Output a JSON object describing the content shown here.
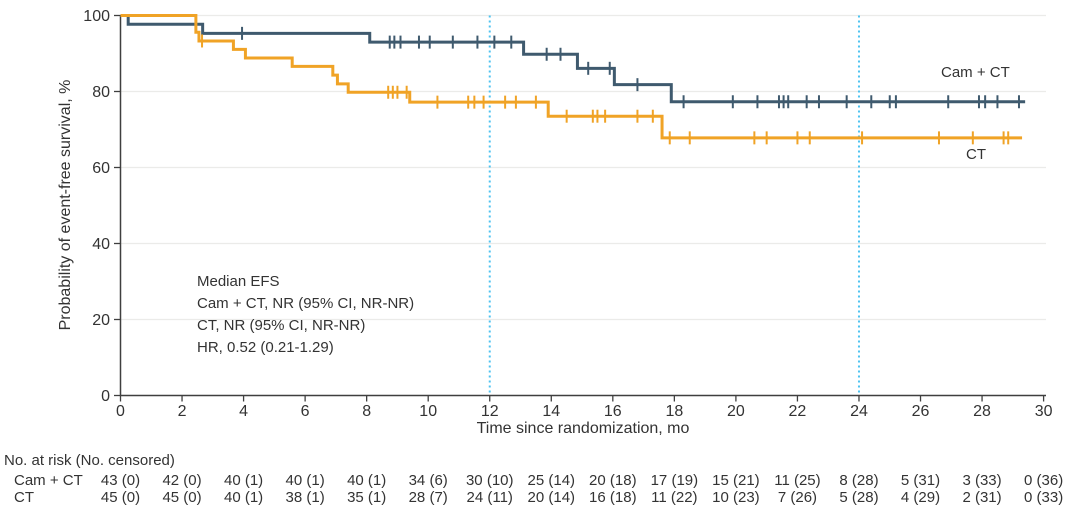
{
  "annotation": [
    "Median EFS",
    "Cam + CT, NR (95% CI, NR-NR)",
    "CT, NR (95% CI, NR-NR)",
    "HR, 0.52 (0.21-1.29)"
  ],
  "chart_data": {
    "type": "line",
    "subtype": "kaplan-meier-step",
    "title": "",
    "xlabel": "Time since randomization, mo",
    "ylabel": "Probability of event-free survival, %",
    "xlim": [
      0,
      30
    ],
    "ylim": [
      0,
      100
    ],
    "x_ticks": [
      0,
      2,
      4,
      6,
      8,
      10,
      12,
      14,
      16,
      18,
      20,
      22,
      24,
      26,
      28,
      30
    ],
    "y_ticks": [
      0,
      20,
      40,
      60,
      80,
      100
    ],
    "grid": "horizontal",
    "grid_color": "#ebebe9",
    "axis_color": "#3f3f3f",
    "text_color": "#333333",
    "reference_lines_x": [
      12,
      24
    ],
    "reference_line_color": "#4ec3f0",
    "legend_position": "on-chart-right",
    "series": [
      {
        "name": "Cam + CT",
        "color": "#3f5a6e",
        "end_x": 29.4,
        "steps": [
          [
            0,
            100
          ],
          [
            0.25,
            97.7
          ],
          [
            2.67,
            95.3
          ],
          [
            8.1,
            93.0
          ],
          [
            13.1,
            89.8
          ],
          [
            14.85,
            86.1
          ],
          [
            16.05,
            81.8
          ],
          [
            17.9,
            77.3
          ]
        ],
        "censor_times": [
          3.95,
          8.75,
          8.9,
          9.1,
          9.7,
          10.05,
          10.8,
          11.6,
          12.15,
          12.7,
          13.85,
          14.3,
          15.2,
          15.9,
          16.8,
          18.3,
          19.9,
          20.7,
          21.4,
          21.55,
          21.7,
          22.3,
          22.7,
          23.6,
          24.4,
          25.0,
          25.2,
          26.9,
          27.9,
          28.1,
          28.5,
          29.2
        ]
      },
      {
        "name": "CT",
        "color": "#f0a326",
        "end_x": 29.3,
        "steps": [
          [
            0,
            100
          ],
          [
            2.45,
            95.6
          ],
          [
            2.55,
            93.3
          ],
          [
            3.67,
            91.1
          ],
          [
            4.06,
            88.8
          ],
          [
            5.58,
            86.6
          ],
          [
            6.9,
            84.3
          ],
          [
            7.05,
            82.0
          ],
          [
            7.4,
            79.8
          ],
          [
            9.4,
            77.2
          ],
          [
            13.9,
            73.5
          ],
          [
            17.6,
            67.8
          ]
        ],
        "censor_times": [
          2.65,
          8.7,
          8.85,
          9.0,
          9.3,
          10.3,
          11.3,
          11.5,
          11.8,
          12.5,
          12.85,
          13.5,
          14.5,
          15.35,
          15.5,
          15.75,
          16.8,
          17.3,
          17.85,
          18.5,
          20.6,
          21.0,
          22.0,
          22.4,
          24.1,
          26.6,
          27.7,
          28.7,
          28.85
        ]
      }
    ]
  },
  "risk_table": {
    "header": "No. at risk (No. censored)",
    "time_points": [
      0,
      2,
      4,
      6,
      8,
      10,
      12,
      14,
      16,
      18,
      20,
      22,
      24,
      26,
      28,
      30
    ],
    "rows": [
      {
        "label": "Cam + CT",
        "values": [
          "43 (0)",
          "42 (0)",
          "40 (1)",
          "40 (1)",
          "40 (1)",
          "34 (6)",
          "30 (10)",
          "25 (14)",
          "20 (18)",
          "17 (19)",
          "15 (21)",
          "11 (25)",
          "8 (28)",
          "5 (31)",
          "3 (33)",
          "0 (36)"
        ]
      },
      {
        "label": "CT",
        "values": [
          "45 (0)",
          "45 (0)",
          "40 (1)",
          "38 (1)",
          "35 (1)",
          "28 (7)",
          "24 (11)",
          "20 (14)",
          "16 (18)",
          "11 (22)",
          "10 (23)",
          "7 (26)",
          "5 (28)",
          "4 (29)",
          "2 (31)",
          "0 (33)"
        ]
      }
    ]
  }
}
